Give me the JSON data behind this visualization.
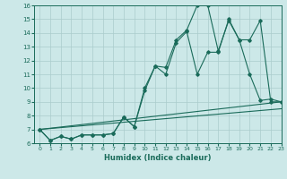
{
  "xlabel": "Humidex (Indice chaleur)",
  "ylabel": "",
  "xlim": [
    -0.5,
    23
  ],
  "ylim": [
    6,
    16
  ],
  "yticks": [
    6,
    7,
    8,
    9,
    10,
    11,
    12,
    13,
    14,
    15,
    16
  ],
  "xticks": [
    0,
    1,
    2,
    3,
    4,
    5,
    6,
    7,
    8,
    9,
    10,
    11,
    12,
    13,
    14,
    15,
    16,
    17,
    18,
    19,
    20,
    21,
    22,
    23
  ],
  "bg_color": "#cce8e8",
  "grid_color": "#aacccc",
  "line_color": "#1a6b5a",
  "series": [
    {
      "x": [
        0,
        1,
        2,
        3,
        4,
        5,
        6,
        7,
        8,
        9,
        10,
        11,
        12,
        13,
        14,
        15,
        16,
        17,
        18,
        19,
        20,
        21,
        22,
        23
      ],
      "y": [
        7.0,
        6.2,
        6.5,
        6.3,
        6.6,
        6.6,
        6.6,
        6.7,
        7.9,
        7.2,
        10.0,
        11.6,
        11.5,
        13.5,
        14.2,
        16.0,
        16.0,
        12.7,
        14.9,
        13.5,
        13.5,
        14.9,
        9.0,
        9.0
      ],
      "marker": true
    },
    {
      "x": [
        0,
        1,
        2,
        3,
        4,
        5,
        6,
        7,
        8,
        9,
        10,
        11,
        12,
        13,
        14,
        15,
        16,
        17,
        18,
        19,
        20,
        21,
        22,
        23
      ],
      "y": [
        7.0,
        6.2,
        6.5,
        6.3,
        6.6,
        6.6,
        6.6,
        6.7,
        7.9,
        7.2,
        9.8,
        11.6,
        11.0,
        13.3,
        14.1,
        11.0,
        12.6,
        12.6,
        15.0,
        13.5,
        11.0,
        9.1,
        9.2,
        9.0
      ],
      "marker": true
    },
    {
      "x": [
        0,
        23
      ],
      "y": [
        7.0,
        9.0
      ],
      "marker": false
    },
    {
      "x": [
        0,
        23
      ],
      "y": [
        7.0,
        8.5
      ],
      "marker": false
    }
  ]
}
